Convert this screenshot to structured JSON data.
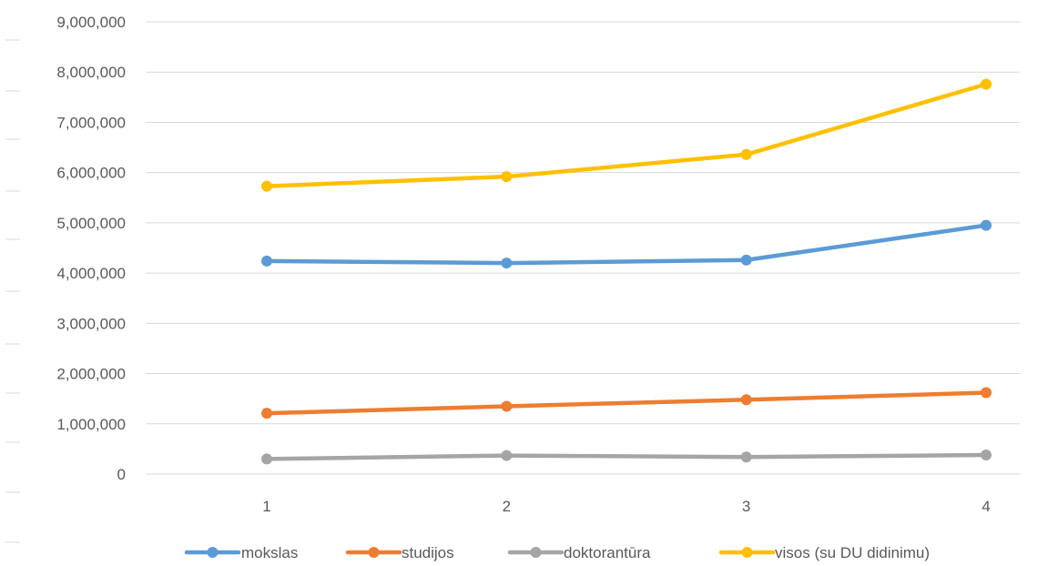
{
  "chart_data": {
    "type": "line",
    "title": "",
    "xlabel": "",
    "ylabel": "",
    "categories": [
      "1",
      "2",
      "3",
      "4"
    ],
    "x": [
      1,
      2,
      3,
      4
    ],
    "ylim": [
      0,
      9000000
    ],
    "yticks": [
      0,
      1000000,
      2000000,
      3000000,
      4000000,
      5000000,
      6000000,
      7000000,
      8000000,
      9000000
    ],
    "ytick_labels": [
      "0",
      "1,000,000",
      "2,000,000",
      "3,000,000",
      "4,000,000",
      "5,000,000",
      "6,000,000",
      "7,000,000",
      "8,000,000",
      "9,000,000"
    ],
    "grid": true,
    "legend_position": "bottom",
    "series": [
      {
        "name": "mokslas",
        "color": "#5B9BD5",
        "values": [
          4240000,
          4200000,
          4260000,
          4950000
        ]
      },
      {
        "name": "studijos",
        "color": "#ED7D31",
        "values": [
          1210000,
          1350000,
          1480000,
          1620000
        ]
      },
      {
        "name": "doktorantūra",
        "color": "#A5A5A5",
        "values": [
          300000,
          370000,
          340000,
          380000
        ]
      },
      {
        "name": "visos (su DU didinimu)",
        "color": "#FFC000",
        "values": [
          5730000,
          5920000,
          6360000,
          7760000
        ]
      }
    ]
  }
}
